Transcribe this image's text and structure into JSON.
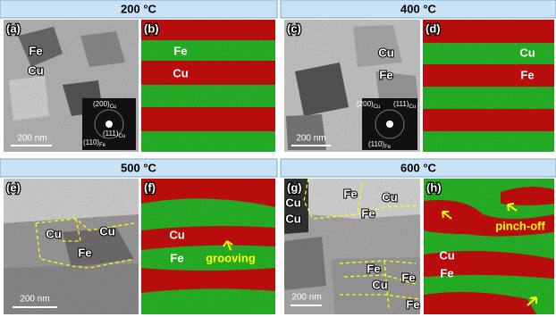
{
  "panels": [
    {
      "header": "200 °C",
      "images": [
        {
          "label": "(a)",
          "labels": [
            "Fe",
            "Cu"
          ],
          "scale_bar": "200 nm",
          "inset": [
            {
              "plane": "(200)",
              "phase": "Cu"
            },
            {
              "plane": "(111)",
              "phase": "Cu"
            },
            {
              "plane": "(110)",
              "phase": "Fe"
            }
          ]
        },
        {
          "label": "(b)",
          "labels": [
            "Fe",
            "Cu"
          ]
        }
      ]
    },
    {
      "header": "400 °C",
      "images": [
        {
          "label": "(c)",
          "labels": [
            "Cu",
            "Fe"
          ],
          "scale_bar": "200 nm",
          "inset": [
            {
              "plane": "(200)",
              "phase": "Cu"
            },
            {
              "plane": "(111)",
              "phase": "Cu"
            },
            {
              "plane": "(110)",
              "phase": "Fe"
            }
          ]
        },
        {
          "label": "(d)",
          "labels": [
            "Cu",
            "Fe"
          ]
        }
      ]
    },
    {
      "header": "500 °C",
      "images": [
        {
          "label": "(e)",
          "labels": [
            "Cu",
            "Cu",
            "Fe"
          ],
          "scale_bar": "200 nm"
        },
        {
          "label": "(f)",
          "labels": [
            "Cu",
            "Fe"
          ],
          "annotation": "grooving"
        }
      ]
    },
    {
      "header": "600 °C",
      "images": [
        {
          "label": "(g)",
          "labels": [
            "Cu",
            "Cu",
            "Fe",
            "Cu",
            "Fe",
            "Fe",
            "Cu",
            "Fe",
            "Fe"
          ],
          "scale_bar": "200 nm"
        },
        {
          "label": "(h)",
          "labels": [
            "Cu",
            "Fe"
          ],
          "annotation": "pinch-off"
        }
      ]
    }
  ]
}
